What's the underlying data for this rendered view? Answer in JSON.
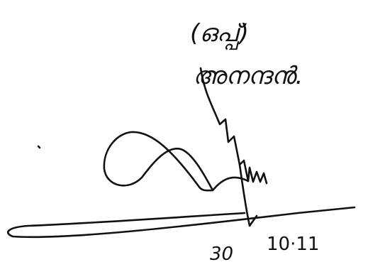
{
  "signature": {
    "mark": "(ഒപ്പ്)",
    "name": "അനന്ദൻ.",
    "date_day": "30",
    "date_rest": "10·11"
  }
}
